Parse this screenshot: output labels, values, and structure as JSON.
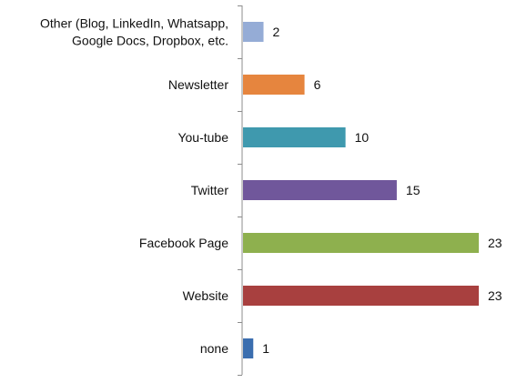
{
  "chart_data": {
    "type": "bar",
    "orientation": "horizontal",
    "categories": [
      "Other (Blog, LinkedIn, Whatsapp, Google Docs, Dropbox, etc.",
      "Newsletter",
      "You-tube",
      "Twitter",
      "Facebook Page",
      "Website",
      "none"
    ],
    "category_lines": [
      [
        "Other (Blog, LinkedIn, Whatsapp,",
        "Google Docs, Dropbox, etc."
      ],
      [
        "Newsletter"
      ],
      [
        "You-tube"
      ],
      [
        "Twitter"
      ],
      [
        "Facebook Page"
      ],
      [
        "Website"
      ],
      [
        "none"
      ]
    ],
    "values": [
      2,
      6,
      10,
      15,
      23,
      23,
      1
    ],
    "colors": [
      "#95acd6",
      "#e6853e",
      "#3f99ae",
      "#70579b",
      "#8eb04e",
      "#a8403f",
      "#3b6eaf"
    ],
    "data_labels": [
      "2",
      "6",
      "10",
      "15",
      "23",
      "23",
      "1"
    ],
    "xlim": [
      0,
      23
    ],
    "title": "",
    "xlabel": "",
    "ylabel": "",
    "grid": false,
    "legend": "none"
  }
}
